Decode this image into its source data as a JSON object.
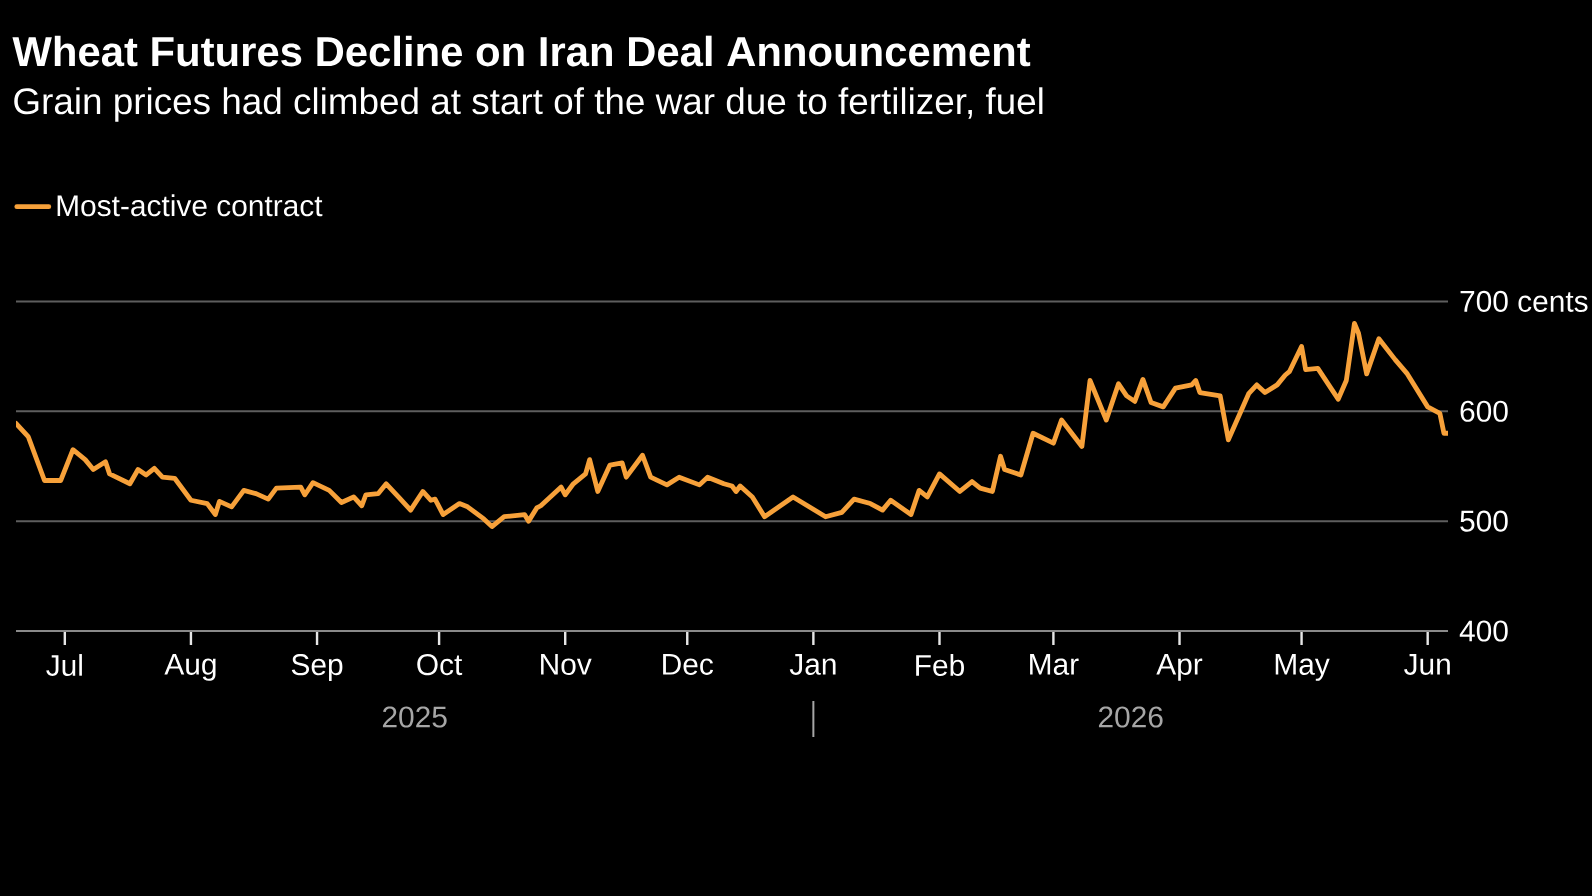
{
  "chart_data": {
    "type": "line",
    "title": "Wheat Futures Decline on Iran Deal Announcement",
    "subtitle": "Grain prices had climbed at start of the war due to fertilizer, fuel",
    "x": [
      "2025-06-19",
      "2025-06-22",
      "2025-06-26",
      "2025-06-30",
      "2025-07-03",
      "2025-07-06",
      "2025-07-08",
      "2025-07-11",
      "2025-07-12",
      "2025-07-17",
      "2025-07-19",
      "2025-07-21",
      "2025-07-23",
      "2025-07-25",
      "2025-07-28",
      "2025-08-01",
      "2025-08-05",
      "2025-08-07",
      "2025-08-08",
      "2025-08-11",
      "2025-08-14",
      "2025-08-17",
      "2025-08-20",
      "2025-08-22",
      "2025-08-28",
      "2025-08-29",
      "2025-08-31",
      "2025-09-04",
      "2025-09-07",
      "2025-09-10",
      "2025-09-12",
      "2025-09-13",
      "2025-09-16",
      "2025-09-18",
      "2025-09-21",
      "2025-09-24",
      "2025-09-27",
      "2025-09-29",
      "2025-09-30",
      "2025-10-02",
      "2025-10-06",
      "2025-10-08",
      "2025-10-12",
      "2025-10-14",
      "2025-10-17",
      "2025-10-22",
      "2025-10-23",
      "2025-10-25",
      "2025-10-26",
      "2025-10-31",
      "2025-11-01",
      "2025-11-03",
      "2025-11-06",
      "2025-11-07",
      "2025-11-09",
      "2025-11-12",
      "2025-11-15",
      "2025-11-16",
      "2025-11-20",
      "2025-11-22",
      "2025-11-26",
      "2025-11-29",
      "2025-12-04",
      "2025-12-06",
      "2025-12-10",
      "2025-12-12",
      "2025-12-13",
      "2025-12-14",
      "2025-12-17",
      "2025-12-20",
      "2025-12-27",
      "2026-01-04",
      "2026-01-08",
      "2026-01-11",
      "2026-01-15",
      "2026-01-18",
      "2026-01-20",
      "2026-01-25",
      "2026-01-27",
      "2026-01-29",
      "2026-02-01",
      "2026-02-06",
      "2026-02-09",
      "2026-02-11",
      "2026-02-14",
      "2026-02-16",
      "2026-02-17",
      "2026-02-21",
      "2026-02-24",
      "2026-03-01",
      "2026-03-03",
      "2026-03-08",
      "2026-03-10",
      "2026-03-14",
      "2026-03-17",
      "2026-03-19",
      "2026-03-21",
      "2026-03-23",
      "2026-03-25",
      "2026-03-28",
      "2026-03-31",
      "2026-04-04",
      "2026-04-05",
      "2026-04-06",
      "2026-04-11",
      "2026-04-13",
      "2026-04-18",
      "2026-04-20",
      "2026-04-22",
      "2026-04-25",
      "2026-04-27",
      "2026-04-28",
      "2026-05-01",
      "2026-05-02",
      "2026-05-05",
      "2026-05-10",
      "2026-05-12",
      "2026-05-14",
      "2026-05-15",
      "2026-05-17",
      "2026-05-20",
      "2026-05-24",
      "2026-05-27",
      "2026-06-01",
      "2026-06-04",
      "2026-06-05",
      "2026-06-06"
    ],
    "series": [
      {
        "name": "Most-active contract",
        "color": "#f7a13a",
        "values": [
          589,
          577,
          537,
          537,
          565,
          556,
          547,
          554,
          543,
          534,
          547,
          542,
          548,
          540,
          539,
          519,
          516,
          506,
          518,
          513,
          528,
          525,
          520,
          530,
          531,
          524,
          535,
          528,
          517,
          522,
          514,
          524,
          525,
          534,
          522,
          510,
          527,
          519,
          520,
          506,
          516,
          513,
          502,
          495,
          504,
          506,
          500,
          512,
          514,
          531,
          524,
          534,
          543,
          556,
          527,
          551,
          553,
          540,
          560,
          540,
          533,
          540,
          533,
          540,
          534,
          532,
          527,
          532,
          522,
          504,
          522,
          504,
          508,
          520,
          516,
          510,
          519,
          506,
          528,
          522,
          543,
          527,
          536,
          530,
          527,
          559,
          547,
          542,
          580,
          571,
          592,
          568,
          628,
          592,
          625,
          614,
          609,
          629,
          608,
          604,
          621,
          624,
          628,
          617,
          614,
          574,
          616,
          624,
          617,
          624,
          633,
          636,
          659,
          638,
          639,
          611,
          628,
          680,
          671,
          634,
          666,
          647,
          634,
          604,
          598,
          580,
          580
        ]
      }
    ],
    "xlim": [
      "2025-06-19",
      "2026-06-06"
    ],
    "xticks": [
      {
        "value": "2025-07-01",
        "label": "Jul"
      },
      {
        "value": "2025-08-01",
        "label": "Aug"
      },
      {
        "value": "2025-09-01",
        "label": "Sep"
      },
      {
        "value": "2025-10-01",
        "label": "Oct"
      },
      {
        "value": "2025-11-01",
        "label": "Nov"
      },
      {
        "value": "2025-12-01",
        "label": "Dec"
      },
      {
        "value": "2026-01-01",
        "label": "Jan"
      },
      {
        "value": "2026-02-01",
        "label": "Feb"
      },
      {
        "value": "2026-03-01",
        "label": "Mar"
      },
      {
        "value": "2026-04-01",
        "label": "Apr"
      },
      {
        "value": "2026-05-01",
        "label": "May"
      },
      {
        "value": "2026-06-01",
        "label": "Jun"
      }
    ],
    "ylim": [
      400,
      700
    ],
    "yticks": [
      400,
      500,
      600,
      {
        "value": 700,
        "label": "700 cents"
      }
    ],
    "grid": "y",
    "legend": "top left",
    "annotations": [
      "2025",
      "2026"
    ]
  }
}
